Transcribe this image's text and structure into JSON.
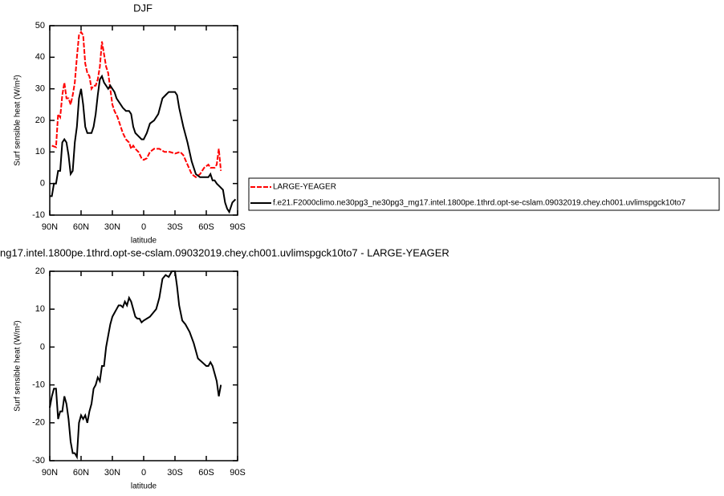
{
  "chart_data": [
    {
      "type": "line",
      "title": "DJF",
      "xlabel": "latitude",
      "ylabel": "Surf sensible heat (W/m²)",
      "xlim": [
        90,
        -90
      ],
      "xticks": [
        {
          "value": 90,
          "label": "90N"
        },
        {
          "value": 60,
          "label": "60N"
        },
        {
          "value": 30,
          "label": "30N"
        },
        0,
        {
          "value": -30,
          "label": "30S"
        },
        {
          "value": -60,
          "label": "60S"
        },
        {
          "value": -90,
          "label": "90S"
        }
      ],
      "ylim": [
        -10,
        50
      ],
      "yticks": [
        -10,
        0,
        10,
        20,
        30,
        40,
        50
      ],
      "series": [
        {
          "name": "LARGE-YEAGER",
          "color": "#ff0000",
          "dashed": true,
          "x": [
            88,
            84,
            82,
            80,
            78,
            76,
            74,
            72,
            70,
            68,
            66,
            64,
            62,
            60,
            58,
            56,
            54,
            52,
            50,
            48,
            46,
            44,
            42,
            40,
            38,
            36,
            34,
            32,
            30,
            28,
            25,
            22,
            20,
            17,
            14,
            12,
            10,
            8,
            5,
            2,
            0,
            -3,
            -6,
            -10,
            -15,
            -20,
            -25,
            -30,
            -35,
            -38,
            -42,
            -46,
            -50,
            -54,
            -58,
            -62,
            -64,
            -66,
            -68,
            -70,
            -72,
            -74
          ],
          "values": [
            12,
            11.5,
            22,
            21,
            28,
            32,
            27,
            27,
            25,
            28,
            32,
            40,
            47,
            48,
            47,
            38,
            35,
            34,
            30,
            31,
            31,
            33,
            37,
            45,
            41,
            37,
            35,
            30,
            25,
            23,
            21,
            18,
            16,
            14,
            13,
            11,
            12,
            11,
            10,
            8,
            7.5,
            8,
            10,
            11,
            11,
            10,
            10,
            9.5,
            10,
            9,
            6,
            3,
            2,
            3,
            5,
            6,
            5,
            5,
            5,
            6,
            11,
            4
          ]
        },
        {
          "name": "f.e21.F2000climo.ne30pg3_ne30pg3_mg17.intel.1800pe.1thrd.opt-se-cslam.09032019.chey.ch001.uvlimspgck10to7",
          "color": "#000000",
          "dashed": false,
          "x": [
            90,
            88,
            86,
            84,
            82,
            80,
            78,
            76,
            74,
            72,
            70,
            68,
            66,
            64,
            62,
            60,
            58,
            56,
            54,
            52,
            50,
            48,
            46,
            44,
            42,
            40,
            38,
            36,
            34,
            32,
            30,
            28,
            26,
            24,
            22,
            20,
            17,
            14,
            12,
            10,
            8,
            5,
            2,
            0,
            -3,
            -6,
            -10,
            -14,
            -18,
            -21,
            -24,
            -27,
            -30,
            -32,
            -34,
            -38,
            -42,
            -46,
            -50,
            -54,
            -58,
            -62,
            -64,
            -66,
            -68,
            -70,
            -73,
            -76,
            -78,
            -80,
            -82,
            -85,
            -88
          ],
          "values": [
            -4,
            -4,
            0,
            0,
            4,
            4,
            13,
            14,
            13,
            9,
            3,
            4,
            13,
            18,
            27,
            30,
            25,
            18,
            16,
            16,
            16,
            18,
            22,
            28,
            33,
            34,
            32,
            31,
            30,
            31,
            30,
            29,
            27,
            26,
            25,
            24,
            23,
            23,
            22,
            18,
            16,
            15,
            14,
            14,
            16,
            19,
            20,
            22,
            27,
            28,
            29,
            29,
            29,
            28,
            24,
            18,
            13,
            7,
            3,
            2,
            2,
            2,
            3,
            1,
            1,
            0,
            -1,
            -2,
            -6,
            -8,
            -9,
            -6,
            -5
          ]
        }
      ]
    },
    {
      "type": "line",
      "title": "ng17.intel.1800pe.1thrd.opt-se-cslam.09032019.chey.ch001.uvlimspgck10to7 - LARGE-YEAGER",
      "xlabel": "latitude",
      "ylabel": "Surf sensible heat (W/m²)",
      "xlim": [
        90,
        -90
      ],
      "xticks": [
        {
          "value": 90,
          "label": "90N"
        },
        {
          "value": 60,
          "label": "60N"
        },
        {
          "value": 30,
          "label": "30N"
        },
        0,
        {
          "value": -30,
          "label": "30S"
        },
        {
          "value": -60,
          "label": "60S"
        },
        {
          "value": -90,
          "label": "90S"
        }
      ],
      "ylim": [
        -30,
        20
      ],
      "yticks": [
        -30,
        -20,
        -10,
        0,
        10,
        20
      ],
      "series": [
        {
          "color": "#000000",
          "dashed": false,
          "x": [
            90,
            88,
            86,
            84,
            82,
            80,
            78,
            76,
            74,
            72,
            70,
            68,
            66,
            64,
            62,
            60,
            58,
            56,
            54,
            52,
            50,
            48,
            46,
            44,
            42,
            40,
            38,
            36,
            34,
            32,
            30,
            28,
            26,
            24,
            22,
            20,
            18,
            16,
            14,
            12,
            10,
            8,
            6,
            4,
            2,
            0,
            -3,
            -6,
            -9,
            -12,
            -15,
            -18,
            -21,
            -24,
            -27,
            -30,
            -32,
            -34,
            -37,
            -40,
            -44,
            -48,
            -52,
            -56,
            -60,
            -62,
            -64,
            -66,
            -68,
            -70,
            -72,
            -74
          ],
          "values": [
            -16,
            -13,
            -11,
            -11,
            -19,
            -17,
            -17,
            -13,
            -15,
            -19,
            -25,
            -28,
            -28,
            -29,
            -20,
            -18,
            -19,
            -18,
            -20,
            -17,
            -15,
            -11,
            -10,
            -8,
            -9,
            -5,
            -5,
            0,
            3,
            6,
            8,
            9,
            10,
            11,
            11,
            10.5,
            12,
            11,
            13,
            12,
            10,
            8,
            7.5,
            7.5,
            6.5,
            7,
            7.5,
            8,
            9,
            10,
            13,
            18,
            19,
            18.5,
            20,
            20,
            16,
            11,
            7,
            6,
            4,
            1,
            -3,
            -4,
            -5,
            -5,
            -4,
            -5,
            -7,
            -9,
            -13,
            -10
          ]
        }
      ]
    }
  ]
}
